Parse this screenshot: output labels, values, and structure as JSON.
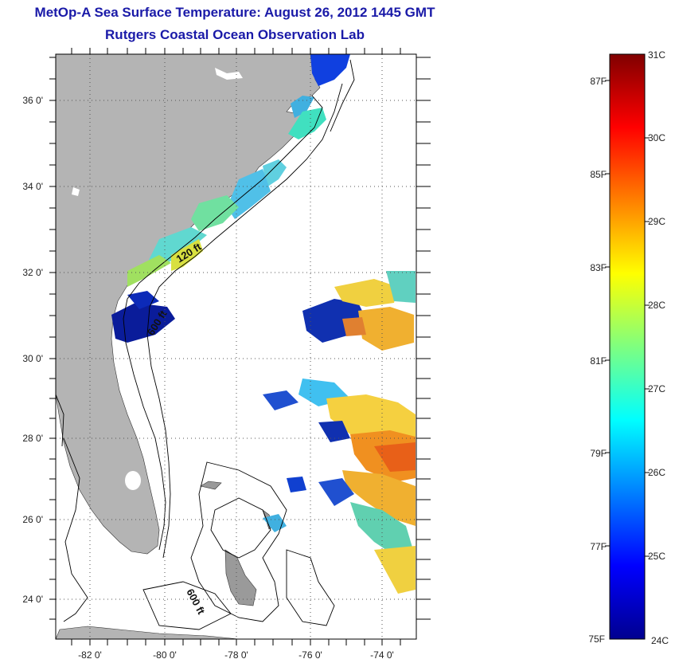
{
  "title": {
    "line1": "MetOp-A Sea Surface Temperature:  August 26, 2012 1445 GMT",
    "line2": "Rutgers Coastal Ocean Observation Lab"
  },
  "map": {
    "lat_labels": [
      "36 0'",
      "34 0'",
      "32 0'",
      "30 0'",
      "28 0'",
      "26 0'",
      "24 0'"
    ],
    "lon_labels": [
      "-82 0'",
      "-80 0'",
      "-78 0'",
      "-76 0'",
      "-74 0'"
    ],
    "contour_labels": [
      "120 ft",
      "600 ft",
      "600 ft"
    ],
    "land_color": "#b4b4b4",
    "contour_color": "#000000"
  },
  "colorbar": {
    "celsius_labels": [
      "31C",
      "30C",
      "29C",
      "28C",
      "27C",
      "26C",
      "25C",
      "24C"
    ],
    "fahrenheit_labels": [
      "87F",
      "85F",
      "83F",
      "81F",
      "79F",
      "77F",
      "75F"
    ],
    "range_c": [
      24,
      31
    ],
    "colormap": "jet"
  }
}
